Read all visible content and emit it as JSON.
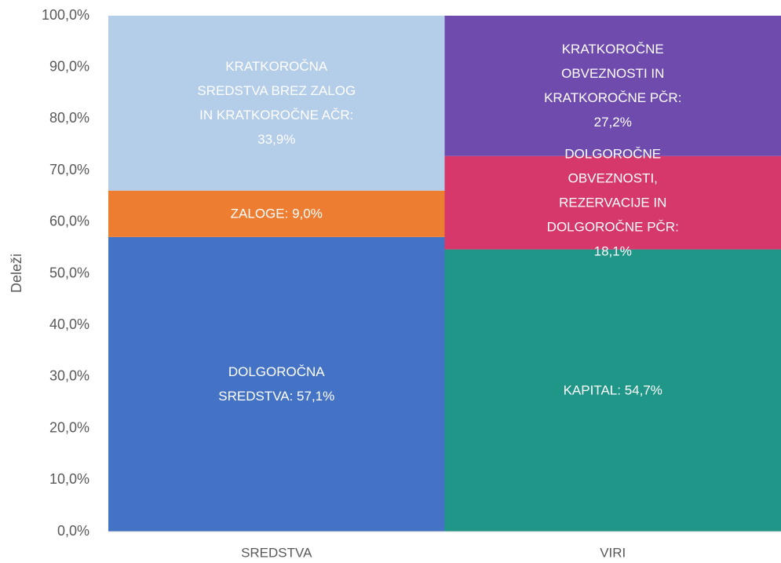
{
  "chart_data": {
    "type": "stacked_bar",
    "y_label": "Deleži",
    "categories": [
      "SREDSTVA",
      "VIRI"
    ],
    "series": [
      {
        "color": "#4472c4",
        "values": [
          57.1,
          null
        ],
        "value_labels": [
          "DOLGOROČNA SREDSTVA: 57,1%",
          null
        ]
      },
      {
        "color": "#ed7d31",
        "values": [
          9.0,
          null
        ],
        "value_labels": [
          "ZALOGE: 9,0%",
          null
        ]
      },
      {
        "color": "#b4cde8",
        "values": [
          33.9,
          null
        ],
        "value_labels": [
          "KRATKOROČNA SREDSTVA BREZ ZALOG IN KRATKOROČNE AČR: 33,9%",
          null
        ]
      },
      {
        "color": "#1f9688",
        "values": [
          null,
          54.7
        ],
        "value_labels": [
          null,
          "KAPITAL: 54,7%"
        ]
      },
      {
        "color": "#d6386b",
        "values": [
          null,
          18.1
        ],
        "value_labels": [
          null,
          "DOLGOROČNE OBVEZNOSTI, REZERVACIJE IN DOLGOROČNE PČR: 18,1%"
        ]
      },
      {
        "color": "#6e4bad",
        "values": [
          null,
          27.2
        ],
        "value_labels": [
          null,
          "KRATKOROČNE OBVEZNOSTI IN KRATKOROČNE PČR: 27,2%"
        ]
      }
    ],
    "ylim": [
      0,
      100
    ],
    "yticks": [
      {
        "value": 0,
        "label": "0,0%"
      },
      {
        "value": 10,
        "label": "10,0%"
      },
      {
        "value": 20,
        "label": "20,0%"
      },
      {
        "value": 30,
        "label": "30,0%"
      },
      {
        "value": 40,
        "label": "40,0%"
      },
      {
        "value": 50,
        "label": "50,0%"
      },
      {
        "value": 60,
        "label": "60,0%"
      },
      {
        "value": 70,
        "label": "70,0%"
      },
      {
        "value": 80,
        "label": "80,0%"
      },
      {
        "value": 90,
        "label": "90,0%"
      },
      {
        "value": 100,
        "label": "100,0%"
      }
    ],
    "grid": false
  }
}
